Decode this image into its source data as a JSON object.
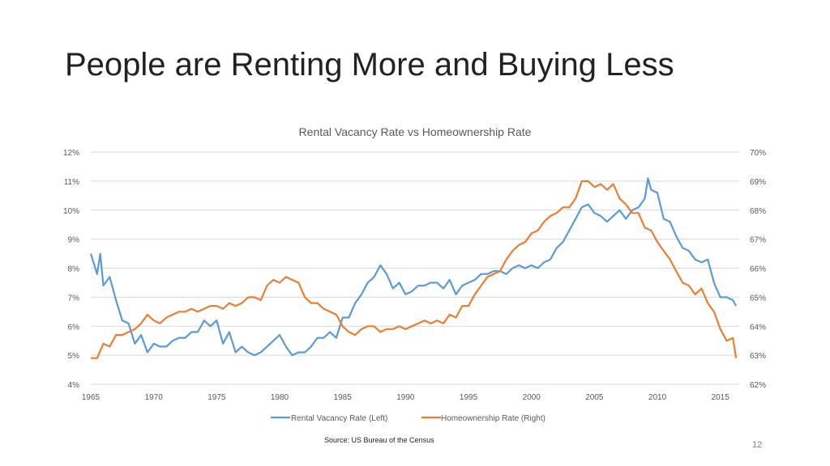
{
  "slide": {
    "title": "People are Renting More and Buying Less",
    "source": "Source: US Bureau of the Census",
    "page_number": "12"
  },
  "colors": {
    "rental": "#5b9bd5",
    "homeownership": "#ed7d31",
    "grid": "#d9d9d9",
    "axis_text": "#595959"
  },
  "chart_data": {
    "type": "line",
    "title": "Rental Vacancy Rate vs Homeownership Rate",
    "xlim": [
      1965,
      2016.5
    ],
    "x_ticks": [
      "1965",
      "1970",
      "1975",
      "1980",
      "1985",
      "1990",
      "1995",
      "2000",
      "2005",
      "2010",
      "2015"
    ],
    "y_left": {
      "ylim": [
        4,
        12
      ],
      "ticks": [
        "4%",
        "5%",
        "6%",
        "7%",
        "8%",
        "9%",
        "10%",
        "11%",
        "12%"
      ]
    },
    "y_right": {
      "ylim": [
        62,
        70
      ],
      "ticks": [
        "62%",
        "63%",
        "64%",
        "65%",
        "66%",
        "67%",
        "68%",
        "69%",
        "70%"
      ]
    },
    "grid": true,
    "legend": "bottom",
    "series": [
      {
        "name": "Rental Vacancy Rate (Left)",
        "axis": "left",
        "x": [
          1965,
          1965.5,
          1965.75,
          1966,
          1966.5,
          1967,
          1967.5,
          1968,
          1968.5,
          1969,
          1969.5,
          1970,
          1970.5,
          1971,
          1971.5,
          1972,
          1972.5,
          1973,
          1973.5,
          1974,
          1974.5,
          1975,
          1975.5,
          1976,
          1976.5,
          1977,
          1977.5,
          1978,
          1978.5,
          1979,
          1979.5,
          1980,
          1980.5,
          1981,
          1981.5,
          1982,
          1982.5,
          1983,
          1983.5,
          1984,
          1984.5,
          1985,
          1985.5,
          1986,
          1986.5,
          1987,
          1987.5,
          1988,
          1988.5,
          1989,
          1989.5,
          1990,
          1990.5,
          1991,
          1991.5,
          1992,
          1992.5,
          1993,
          1993.5,
          1994,
          1994.5,
          1995,
          1995.5,
          1996,
          1996.5,
          1997,
          1997.5,
          1998,
          1998.5,
          1999,
          1999.5,
          2000,
          2000.5,
          2001,
          2001.5,
          2002,
          2002.5,
          2003,
          2003.5,
          2004,
          2004.5,
          2005,
          2005.5,
          2006,
          2006.5,
          2007,
          2007.5,
          2008,
          2008.5,
          2009,
          2009.25,
          2009.5,
          2010,
          2010.5,
          2011,
          2011.5,
          2012,
          2012.5,
          2013,
          2013.5,
          2014,
          2014.5,
          2015,
          2015.5,
          2016,
          2016.25
        ],
        "values": [
          8.5,
          7.8,
          8.5,
          7.4,
          7.7,
          6.9,
          6.2,
          6.1,
          5.4,
          5.7,
          5.1,
          5.4,
          5.3,
          5.3,
          5.5,
          5.6,
          5.6,
          5.8,
          5.8,
          6.2,
          6.0,
          6.2,
          5.4,
          5.8,
          5.1,
          5.3,
          5.1,
          5.0,
          5.1,
          5.3,
          5.5,
          5.7,
          5.3,
          5.0,
          5.1,
          5.1,
          5.3,
          5.6,
          5.6,
          5.8,
          5.6,
          6.3,
          6.3,
          6.8,
          7.1,
          7.5,
          7.7,
          8.1,
          7.8,
          7.3,
          7.5,
          7.1,
          7.2,
          7.4,
          7.4,
          7.5,
          7.5,
          7.3,
          7.6,
          7.1,
          7.4,
          7.5,
          7.6,
          7.8,
          7.8,
          7.9,
          7.9,
          7.8,
          8.0,
          8.1,
          8.0,
          8.1,
          8.0,
          8.2,
          8.3,
          8.7,
          8.9,
          9.3,
          9.7,
          10.1,
          10.2,
          9.9,
          9.8,
          9.6,
          9.8,
          10.0,
          9.7,
          10.0,
          10.1,
          10.4,
          11.1,
          10.7,
          10.6,
          9.7,
          9.6,
          9.1,
          8.7,
          8.6,
          8.3,
          8.2,
          8.3,
          7.5,
          7.0,
          7.0,
          6.9,
          6.7
        ],
        "color": "#5b9bd5"
      },
      {
        "name": "Homeownership Rate (Right)",
        "axis": "right",
        "x": [
          1965,
          1965.5,
          1966,
          1966.5,
          1967,
          1967.5,
          1968,
          1968.5,
          1969,
          1969.5,
          1970,
          1970.5,
          1971,
          1971.5,
          1972,
          1972.5,
          1973,
          1973.5,
          1974,
          1974.5,
          1975,
          1975.5,
          1976,
          1976.5,
          1977,
          1977.5,
          1978,
          1978.5,
          1979,
          1979.5,
          1980,
          1980.5,
          1981,
          1981.5,
          1982,
          1982.5,
          1983,
          1983.5,
          1984,
          1984.5,
          1985,
          1985.5,
          1986,
          1986.5,
          1987,
          1987.5,
          1988,
          1988.5,
          1989,
          1989.5,
          1990,
          1990.5,
          1991,
          1991.5,
          1992,
          1992.5,
          1993,
          1993.5,
          1994,
          1994.5,
          1995,
          1995.5,
          1996,
          1996.5,
          1997,
          1997.5,
          1998,
          1998.5,
          1999,
          1999.5,
          2000,
          2000.5,
          2001,
          2001.5,
          2002,
          2002.5,
          2003,
          2003.5,
          2004,
          2004.5,
          2005,
          2005.5,
          2006,
          2006.5,
          2007,
          2007.5,
          2008,
          2008.5,
          2009,
          2009.5,
          2010,
          2010.5,
          2011,
          2011.5,
          2012,
          2012.5,
          2013,
          2013.5,
          2014,
          2014.5,
          2015,
          2015.5,
          2016,
          2016.25
        ],
        "values": [
          62.9,
          62.9,
          63.4,
          63.3,
          63.7,
          63.7,
          63.8,
          63.9,
          64.1,
          64.4,
          64.2,
          64.1,
          64.3,
          64.4,
          64.5,
          64.5,
          64.6,
          64.5,
          64.6,
          64.7,
          64.7,
          64.6,
          64.8,
          64.7,
          64.8,
          65.0,
          65.0,
          64.9,
          65.4,
          65.6,
          65.5,
          65.7,
          65.6,
          65.5,
          65.0,
          64.8,
          64.8,
          64.6,
          64.5,
          64.4,
          64.0,
          63.8,
          63.7,
          63.9,
          64.0,
          64.0,
          63.8,
          63.9,
          63.9,
          64.0,
          63.9,
          64.0,
          64.1,
          64.2,
          64.1,
          64.2,
          64.1,
          64.4,
          64.3,
          64.7,
          64.7,
          65.1,
          65.4,
          65.7,
          65.8,
          65.9,
          66.3,
          66.6,
          66.8,
          66.9,
          67.2,
          67.3,
          67.6,
          67.8,
          67.9,
          68.1,
          68.1,
          68.4,
          69.0,
          69.0,
          68.8,
          68.9,
          68.7,
          68.9,
          68.4,
          68.2,
          67.9,
          67.9,
          67.4,
          67.3,
          66.9,
          66.6,
          66.3,
          65.9,
          65.5,
          65.4,
          65.1,
          65.3,
          64.8,
          64.5,
          63.9,
          63.5,
          63.6,
          62.9
        ]
      }
    ]
  }
}
